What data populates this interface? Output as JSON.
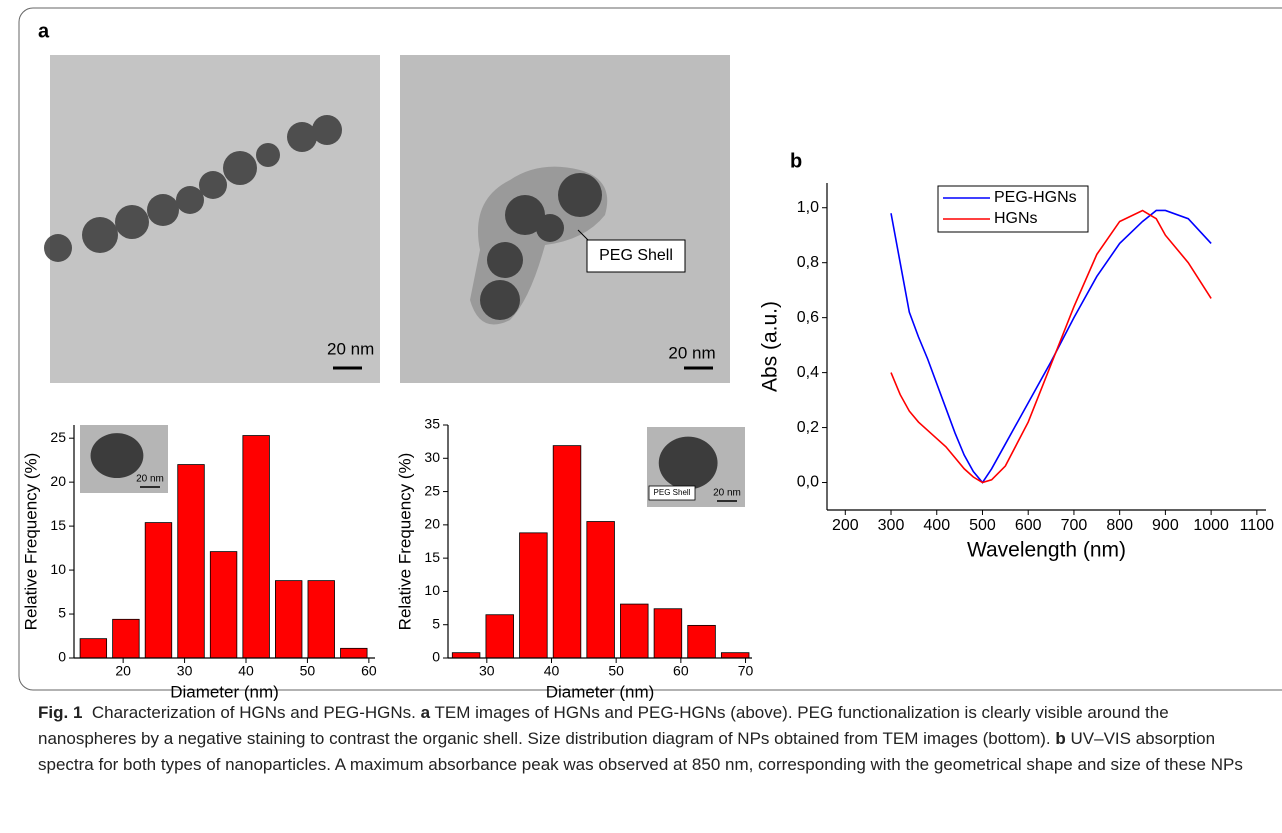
{
  "panel_labels": [
    "a",
    "b"
  ],
  "tem_images": [
    {
      "scale_label": "20 nm"
    },
    {
      "scale_label": "20 nm",
      "annotation": "PEG Shell"
    }
  ],
  "insets": [
    {
      "scale_label": "20 nm"
    },
    {
      "scale_label": "20 nm",
      "annotation": "PEG Shell"
    }
  ],
  "chart_data": [
    {
      "type": "histogram",
      "bins": [
        12.5,
        17.8,
        23.1,
        28.4,
        33.7,
        39,
        44.3,
        49.6,
        54.9,
        60.2
      ],
      "values": [
        2.2,
        4.4,
        15.4,
        22,
        12.1,
        25.3,
        8.8,
        8.8,
        1.1
      ],
      "color": "#ff0000",
      "xlim": [
        12,
        61
      ],
      "xticks": [
        20,
        30,
        40,
        50,
        60
      ],
      "ylim": [
        0,
        26.5
      ],
      "yticks": [
        0,
        5,
        10,
        15,
        20,
        25
      ],
      "xlabel": "Diameter (nm)",
      "ylabel": "Relative Frequency (%)"
    },
    {
      "type": "histogram",
      "bins": [
        24.2,
        29.4,
        34.6,
        39.8,
        45,
        50.2,
        55.4,
        60.6,
        65.8,
        71
      ],
      "values": [
        0.8,
        6.5,
        18.8,
        31.9,
        20.5,
        8.1,
        7.4,
        4.9,
        0.8
      ],
      "color": "#ff0000",
      "xlim": [
        24,
        71
      ],
      "xticks": [
        30,
        40,
        50,
        60,
        70
      ],
      "ylim": [
        0,
        35
      ],
      "yticks": [
        0,
        5,
        10,
        15,
        20,
        25,
        30,
        35
      ],
      "xlabel": "Diameter (nm)",
      "ylabel": "Relative Frequency (%)"
    },
    {
      "type": "line",
      "x": [
        300,
        320,
        340,
        360,
        380,
        400,
        420,
        440,
        460,
        480,
        500,
        520,
        550,
        600,
        650,
        700,
        750,
        800,
        850,
        880,
        900,
        950,
        1000
      ],
      "series": [
        {
          "name": "PEG-HGNs",
          "color": "#0000ff",
          "values": [
            0.98,
            0.8,
            0.62,
            0.53,
            0.45,
            0.36,
            0.27,
            0.18,
            0.1,
            0.04,
            0,
            0.05,
            0.14,
            0.29,
            0.44,
            0.6,
            0.75,
            0.87,
            0.95,
            0.99,
            0.99,
            0.96,
            0.87
          ]
        },
        {
          "name": "HGNs",
          "color": "#ff0000",
          "values": [
            0.4,
            0.32,
            0.26,
            0.22,
            0.19,
            0.16,
            0.13,
            0.09,
            0.05,
            0.02,
            0,
            0.01,
            0.06,
            0.22,
            0.43,
            0.64,
            0.83,
            0.95,
            0.99,
            0.96,
            0.9,
            0.8,
            0.67
          ]
        }
      ],
      "xlim": [
        160,
        1120
      ],
      "xticks": [
        200,
        300,
        400,
        500,
        600,
        700,
        800,
        900,
        1000,
        1100
      ],
      "ylim": [
        -0.1,
        1.09
      ],
      "yticks": [
        {
          "value": 0,
          "label": "0,0"
        },
        {
          "value": 0.2,
          "label": "0,2"
        },
        {
          "value": 0.4,
          "label": "0,4"
        },
        {
          "value": 0.6,
          "label": "0,6"
        },
        {
          "value": 0.8,
          "label": "0,8"
        },
        {
          "value": 1,
          "label": "1,0"
        }
      ],
      "xlabel": "Wavelength (nm)",
      "ylabel": "Abs (a.u.)",
      "legend": "upper left"
    }
  ],
  "caption": [
    {
      "text": "Fig. 1",
      "bold": true
    },
    {
      "text": "  Characterization of HGNs and PEG-HGNs. ",
      "bold": false
    },
    {
      "text": "a",
      "bold": true
    },
    {
      "text": " TEM images of HGNs and PEG-HGNs (above). PEG functionalization is clearly visible around the nanospheres by a negative staining to contrast the organic shell. Size distribution diagram of NPs obtained from TEM images (bottom). ",
      "bold": false
    },
    {
      "text": "b",
      "bold": true
    },
    {
      "text": " UV–VIS absorption spectra for both types of nanoparticles. A maximum absorbance peak was observed at 850 nm, corresponding with the geometrical shape and size of these NPs",
      "bold": false
    }
  ]
}
